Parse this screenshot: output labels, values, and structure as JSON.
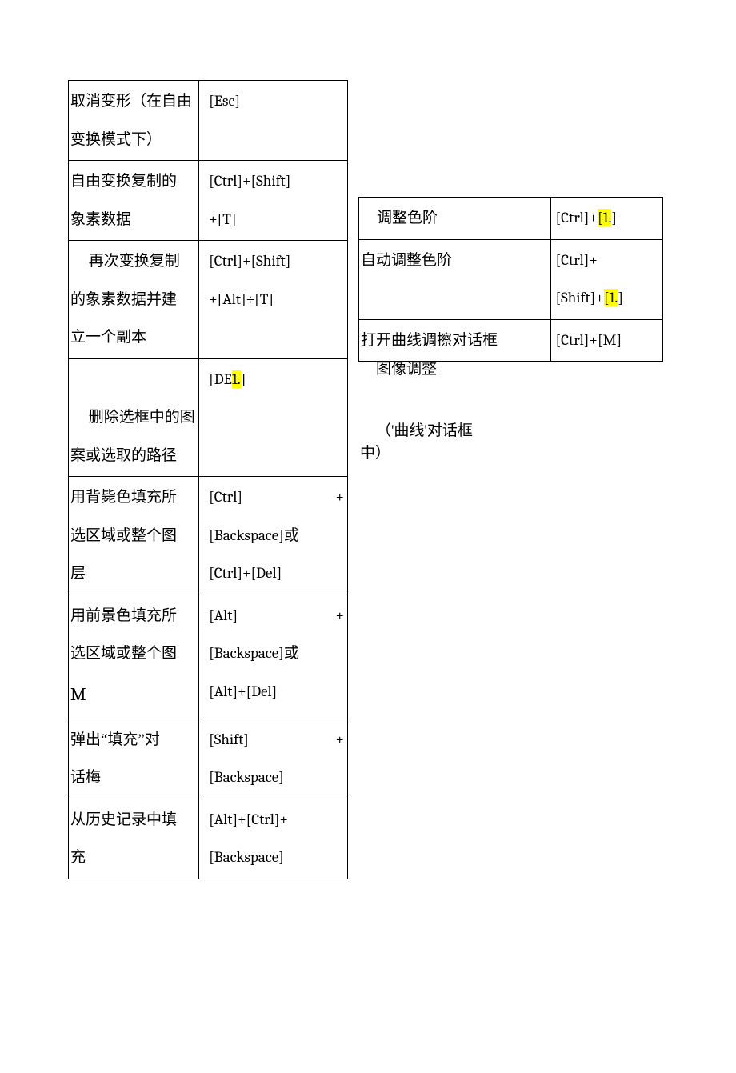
{
  "leftTable": {
    "rows": [
      {
        "desc_lines": [
          "取消变形（在自由",
          "变换模式下）"
        ],
        "desc_indent": [
          false,
          false
        ],
        "kbd_lines": [
          [
            "[Esc]"
          ]
        ],
        "kbd_spread": [
          false
        ]
      },
      {
        "desc_lines": [
          "自由变换复制的",
          "象素数据"
        ],
        "desc_indent": [
          false,
          false
        ],
        "kbd_lines": [
          [
            "[Ctrl]+[Shift]"
          ],
          [
            "+[T]"
          ]
        ],
        "kbd_spread": [
          false,
          false
        ]
      },
      {
        "desc_lines": [
          "再次变换复制",
          "的象素数据并建",
          "立一个副本"
        ],
        "desc_indent": [
          true,
          false,
          false
        ],
        "kbd_lines": [
          [
            "[Ctrl]+[Shift]"
          ],
          [
            "+[Alt]÷[T]"
          ]
        ],
        "kbd_spread": [
          false,
          false
        ]
      },
      {
        "desc_lines": [
          "",
          "删除选框中的图",
          "案或选取的路径"
        ],
        "desc_indent": [
          false,
          true,
          false
        ],
        "kbd_htmls": [
          "[DE<span class=\"hl\">1.</span>]"
        ]
      },
      {
        "desc_lines": [
          "用背毙色填充所",
          "选区域或整个图",
          "层"
        ],
        "desc_indent": [
          false,
          false,
          false
        ],
        "kbd_htmls": [
          "<span class=\"spread\"><span>[Ctrl]</span><span>+</span></span>",
          "[Backspace]<span class=\"cn\">或</span>",
          "[Ctrl]+[Del]"
        ]
      },
      {
        "desc_lines": [
          "用前景色填充所",
          "选区域或整个图",
          "<span class=\"M-letter\">M</span>"
        ],
        "desc_indent": [
          false,
          false,
          false
        ],
        "kbd_htmls": [
          "<span class=\"spread\"><span>[Alt]</span><span>+</span></span>",
          "[Backspace]<span class=\"cn\">或</span>",
          "[Alt]+[Del]"
        ]
      },
      {
        "desc_lines": [
          "弹出“填充”对",
          "话梅"
        ],
        "desc_indent": [
          false,
          false
        ],
        "kbd_htmls": [
          "<span class=\"spread\"><span>[Shift]</span><span>+</span></span>",
          "[Backspace]"
        ]
      },
      {
        "desc_lines": [
          "从历史记录中填",
          "充"
        ],
        "desc_indent": [
          false,
          false
        ],
        "kbd_lines": [
          [
            "[Alt]+[Ctrl]+"
          ],
          [
            "[Backspace]"
          ]
        ],
        "kbd_spread": [
          false,
          false
        ]
      }
    ]
  },
  "rightTable": {
    "rows": [
      {
        "desc": "调整色阶",
        "desc_indent": true,
        "kbd_html": "[Ctrl]+<span class=\"hl\">[1.</span>]"
      },
      {
        "desc": "自动调整色阶",
        "desc_indent": false,
        "kbd_html": "[Ctrl]+<br>[Shift]+<span class=\"hl\">[1.</span>]"
      },
      {
        "desc": "打开曲线调擦对话框",
        "desc_indent": false,
        "kbd_html": "[Ctrl]+[M]"
      }
    ]
  },
  "captions": {
    "title": "图像调整",
    "note1": "（'曲线'对话框",
    "note2": "中）"
  },
  "colors": {
    "highlight": "#ffff00",
    "border": "#000000",
    "background": "#ffffff",
    "text": "#000000"
  }
}
